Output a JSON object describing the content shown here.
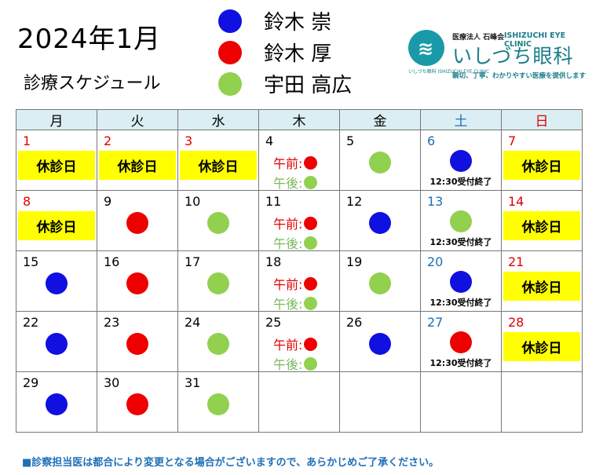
{
  "header": {
    "title": "2024年1月",
    "subtitle": "診療スケジュール"
  },
  "legend": [
    {
      "name": "鈴木 崇",
      "color": "#1010e0"
    },
    {
      "name": "鈴木 厚",
      "color": "#ee0000"
    },
    {
      "name": "宇田 高広",
      "color": "#92d050"
    }
  ],
  "clinic": {
    "corp": "医療法人 石峰会",
    "name_en": "ISHIZUCHI EYE CLINIC",
    "name_ja": "いしづち眼科",
    "name_small": "いしづち眼科 ISHIZUCHI EYE CLINIC",
    "tagline": "親切、丁寧、わかりやすい医療を提供します",
    "color": "#1a9aa8"
  },
  "colors": {
    "blue": "#1010e0",
    "red": "#ee0000",
    "green": "#92d050",
    "holiday_bg": "#ffff00",
    "header_bg": "#dbeef3"
  },
  "calendar": {
    "weekdays": [
      "月",
      "火",
      "水",
      "木",
      "金",
      "土",
      "日"
    ],
    "closed_label": "休診日",
    "am_label": "午前:",
    "pm_label": "午後:",
    "sat_note": "12:30受付終了",
    "weeks": [
      [
        {
          "day": "1",
          "dayColor": "red",
          "type": "closed"
        },
        {
          "day": "2",
          "dayColor": "red",
          "type": "closed"
        },
        {
          "day": "3",
          "dayColor": "red",
          "type": "closed"
        },
        {
          "day": "4",
          "type": "split",
          "am": "red",
          "pm": "green"
        },
        {
          "day": "5",
          "type": "dot",
          "doctor": "green"
        },
        {
          "day": "6",
          "dayColor": "blue",
          "type": "sat",
          "doctor": "blue"
        },
        {
          "day": "7",
          "dayColor": "red",
          "type": "closed"
        }
      ],
      [
        {
          "day": "8",
          "dayColor": "red",
          "type": "closed"
        },
        {
          "day": "9",
          "type": "dot",
          "doctor": "red"
        },
        {
          "day": "10",
          "type": "dot",
          "doctor": "green"
        },
        {
          "day": "11",
          "type": "split",
          "am": "red",
          "pm": "green"
        },
        {
          "day": "12",
          "type": "dot",
          "doctor": "blue"
        },
        {
          "day": "13",
          "dayColor": "blue",
          "type": "sat",
          "doctor": "green"
        },
        {
          "day": "14",
          "dayColor": "red",
          "type": "closed"
        }
      ],
      [
        {
          "day": "15",
          "type": "dot",
          "doctor": "blue"
        },
        {
          "day": "16",
          "type": "dot",
          "doctor": "red"
        },
        {
          "day": "17",
          "type": "dot",
          "doctor": "green"
        },
        {
          "day": "18",
          "type": "split",
          "am": "red",
          "pm": "green"
        },
        {
          "day": "19",
          "type": "dot",
          "doctor": "green"
        },
        {
          "day": "20",
          "dayColor": "blue",
          "type": "sat",
          "doctor": "blue"
        },
        {
          "day": "21",
          "dayColor": "red",
          "type": "closed"
        }
      ],
      [
        {
          "day": "22",
          "type": "dot",
          "doctor": "blue"
        },
        {
          "day": "23",
          "type": "dot",
          "doctor": "red"
        },
        {
          "day": "24",
          "type": "dot",
          "doctor": "green"
        },
        {
          "day": "25",
          "type": "split",
          "am": "red",
          "pm": "green"
        },
        {
          "day": "26",
          "type": "dot",
          "doctor": "blue"
        },
        {
          "day": "27",
          "dayColor": "blue",
          "type": "sat",
          "doctor": "red"
        },
        {
          "day": "28",
          "dayColor": "red",
          "type": "closed"
        }
      ],
      [
        {
          "day": "29",
          "type": "dot",
          "doctor": "blue"
        },
        {
          "day": "30",
          "type": "dot",
          "doctor": "red"
        },
        {
          "day": "31",
          "type": "dot",
          "doctor": "green"
        },
        {
          "day": "",
          "type": "empty"
        },
        {
          "day": "",
          "type": "empty"
        },
        {
          "day": "",
          "type": "empty"
        },
        {
          "day": "",
          "type": "empty"
        }
      ]
    ]
  },
  "footer": "■診察担当医は都合により変更となる場合がございますので、あらかじめご了承ください。"
}
